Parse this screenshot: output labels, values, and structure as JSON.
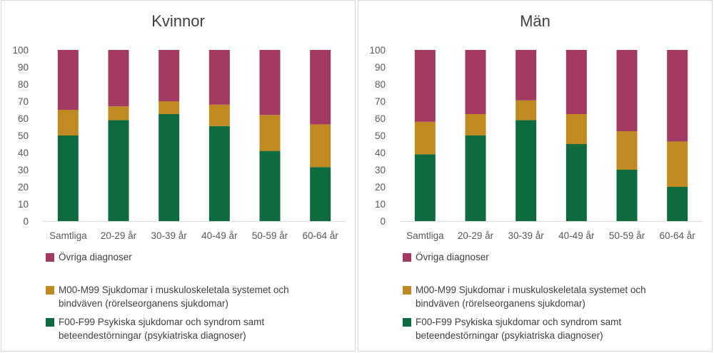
{
  "colors": {
    "ovriga": "#a33a62",
    "m00": "#c08a23",
    "f00": "#0d6b3d",
    "axis_text": "#595959",
    "gridline": "#d9d9d9"
  },
  "legend": [
    {
      "key": "ovriga",
      "label": "Övriga diagnoser"
    },
    {
      "key": "m00",
      "label": "M00-M99 Sjukdomar i muskuloskeletala systemet och bindväven (rörelseorganens sjukdomar)"
    },
    {
      "key": "f00",
      "label": "F00-F99 Psykiska sjukdomar och syndrom samt beteendestörningar (psykiatriska diagnoser)"
    }
  ],
  "chart_data": [
    {
      "type": "bar",
      "stacked": true,
      "title": "Kvinnor",
      "categories": [
        "Samtliga",
        "20-29 år",
        "30-39 år",
        "40-49 år",
        "50-59 år",
        "60-64 år"
      ],
      "yticks": [
        "0",
        "10",
        "20",
        "30",
        "40",
        "50",
        "60",
        "70",
        "80",
        "90",
        "100"
      ],
      "ylim": [
        0,
        100
      ],
      "series": [
        {
          "name": "F00-F99 Psykiska sjukdomar och syndrom samt beteendestörningar (psykiatriska diagnoser)",
          "key": "f00",
          "values": [
            50,
            59,
            62.5,
            55.5,
            41,
            31.5
          ]
        },
        {
          "name": "M00-M99 Sjukdomar i muskuloskeletala systemet och bindväven (rörelseorganens sjukdomar)",
          "key": "m00",
          "values": [
            15,
            8,
            7.5,
            12.5,
            21,
            25
          ]
        },
        {
          "name": "Övriga diagnoser",
          "key": "ovriga",
          "values": [
            35,
            33,
            30,
            32,
            38,
            43.5
          ]
        }
      ]
    },
    {
      "type": "bar",
      "stacked": true,
      "title": "Män",
      "categories": [
        "Samtliga",
        "20-29 år",
        "30-39 år",
        "40-49 år",
        "50-59 år",
        "60-64 år"
      ],
      "yticks": [
        "0",
        "10",
        "20",
        "30",
        "40",
        "50",
        "60",
        "70",
        "80",
        "90",
        "100"
      ],
      "ylim": [
        0,
        100
      ],
      "series": [
        {
          "name": "F00-F99 Psykiska sjukdomar och syndrom samt beteendestörningar (psykiatriska diagnoser)",
          "key": "f00",
          "values": [
            39,
            50,
            59,
            45,
            30,
            20
          ]
        },
        {
          "name": "M00-M99 Sjukdomar i muskuloskeletala systemet och bindväven (rörelseorganens sjukdomar)",
          "key": "m00",
          "values": [
            19,
            12.5,
            11.5,
            17.5,
            22.5,
            26.5
          ]
        },
        {
          "name": "Övriga diagnoser",
          "key": "ovriga",
          "values": [
            42,
            37.5,
            29.5,
            37.5,
            47.5,
            53.5
          ]
        }
      ]
    }
  ]
}
